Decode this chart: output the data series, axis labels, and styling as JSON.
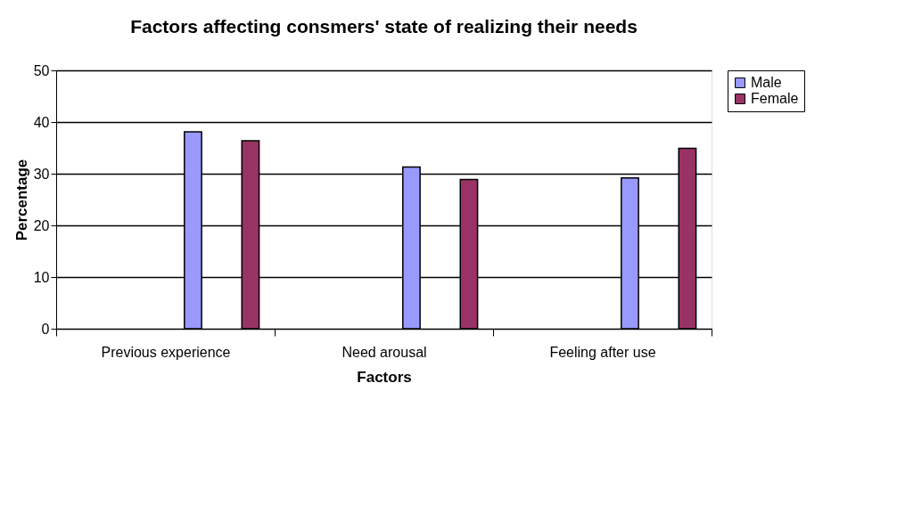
{
  "chart_data": {
    "type": "bar",
    "title": "Factors affecting consmers' state of realizing their needs",
    "xlabel": "Factors",
    "ylabel": "Percentage",
    "categories": [
      "Previous experience",
      "Need arousal",
      "Feeling after use"
    ],
    "series": [
      {
        "name": "Male",
        "color": "#9999ff",
        "values": [
          38.1,
          31.3,
          29.2
        ]
      },
      {
        "name": "Female",
        "color": "#993366",
        "values": [
          36.4,
          28.9,
          34.9
        ]
      }
    ],
    "ylim": [
      0,
      50
    ],
    "yticks": [
      0,
      10,
      20,
      30,
      40,
      50
    ],
    "grid": "y",
    "legend": "right"
  }
}
